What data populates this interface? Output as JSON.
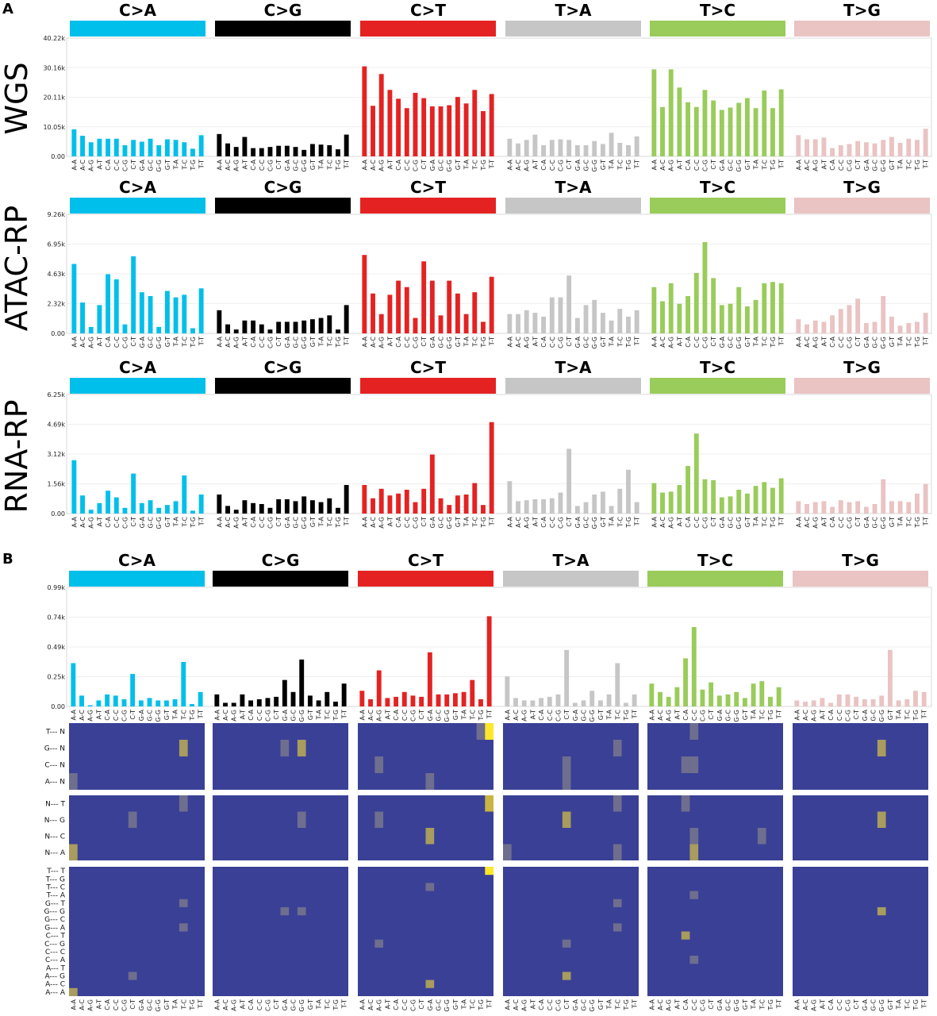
{
  "panels": [
    "A",
    "B"
  ],
  "chart_data": [
    {
      "type": "bar",
      "title": "WGS",
      "classes": [
        "C>A",
        "C>G",
        "C>T",
        "T>A",
        "T>C",
        "T>G"
      ],
      "colors": [
        "#00bfea",
        "#000000",
        "#e52222",
        "#c6c6c6",
        "#99cc5a",
        "#eac3c3"
      ],
      "contexts": [
        "A-A",
        "A-C",
        "A-G",
        "A-T",
        "C-A",
        "C-C",
        "C-G",
        "C-T",
        "G-A",
        "G-C",
        "G-G",
        "G-T",
        "T-A",
        "T-C",
        "T-G",
        "T-T"
      ],
      "ylim": [
        0,
        40.22
      ],
      "yticks": [
        "0.00",
        "10.05k",
        "20.11k",
        "30.16k",
        "40.22k"
      ],
      "values": [
        [
          9.2,
          7.0,
          4.8,
          6.0,
          6.0,
          6.0,
          3.8,
          5.6,
          5.0,
          6.0,
          3.8,
          5.8,
          5.6,
          4.8,
          2.6,
          7.2
        ],
        [
          7.6,
          4.4,
          3.2,
          6.6,
          2.8,
          2.8,
          3.2,
          3.6,
          3.6,
          3.2,
          2.2,
          4.2,
          4.0,
          3.8,
          2.4,
          7.4
        ],
        [
          30.6,
          17.2,
          28.0,
          22.6,
          19.6,
          16.4,
          21.6,
          19.8,
          17.0,
          17.0,
          17.4,
          20.2,
          18.0,
          22.6,
          15.4,
          21.2
        ],
        [
          6.0,
          4.4,
          5.6,
          7.4,
          3.8,
          5.6,
          5.8,
          5.6,
          3.8,
          3.8,
          5.2,
          4.2,
          8.0,
          4.6,
          3.8,
          6.8
        ],
        [
          29.6,
          16.8,
          29.6,
          23.4,
          18.4,
          16.8,
          22.6,
          19.0,
          15.8,
          16.6,
          18.2,
          19.8,
          16.4,
          22.4,
          16.4,
          22.8
        ],
        [
          7.2,
          5.8,
          5.8,
          6.4,
          2.8,
          3.8,
          4.2,
          5.2,
          4.8,
          4.4,
          5.6,
          6.6,
          4.6,
          6.0,
          5.6,
          9.4
        ]
      ]
    },
    {
      "type": "bar",
      "title": "ATAC-RP",
      "classes": [
        "C>A",
        "C>G",
        "C>T",
        "T>A",
        "T>C",
        "T>G"
      ],
      "colors": [
        "#00bfea",
        "#000000",
        "#e52222",
        "#c6c6c6",
        "#99cc5a",
        "#eac3c3"
      ],
      "contexts": [
        "A-A",
        "A-C",
        "A-G",
        "A-T",
        "C-A",
        "C-C",
        "C-G",
        "C-T",
        "G-A",
        "G-C",
        "G-G",
        "G-T",
        "T-A",
        "T-C",
        "T-G",
        "T-T"
      ],
      "ylim": [
        0,
        9.26
      ],
      "yticks": [
        "0.00",
        "2.32k",
        "4.63k",
        "6.95k",
        "9.26k"
      ],
      "values": [
        [
          5.4,
          2.4,
          0.5,
          2.2,
          4.6,
          4.2,
          0.7,
          6.0,
          3.2,
          2.9,
          0.5,
          3.3,
          2.8,
          3.0,
          0.4,
          3.5
        ],
        [
          1.8,
          0.7,
          0.3,
          1.0,
          1.0,
          0.7,
          0.3,
          0.9,
          0.9,
          0.9,
          1.0,
          1.1,
          1.2,
          1.4,
          0.3,
          2.2
        ],
        [
          6.1,
          3.1,
          1.5,
          3.0,
          4.1,
          3.6,
          1.2,
          5.6,
          4.1,
          1.4,
          4.1,
          3.1,
          1.5,
          3.2,
          0.9,
          4.4
        ],
        [
          1.5,
          1.5,
          1.8,
          1.6,
          1.3,
          2.8,
          2.8,
          4.5,
          1.2,
          2.2,
          2.6,
          1.6,
          1.0,
          1.9,
          1.3,
          1.8
        ],
        [
          3.6,
          2.5,
          3.9,
          2.3,
          2.9,
          4.7,
          7.1,
          4.3,
          2.2,
          2.3,
          3.6,
          2.1,
          2.6,
          3.9,
          4.0,
          3.9
        ],
        [
          1.1,
          0.7,
          1.0,
          0.9,
          1.4,
          1.9,
          2.2,
          2.7,
          0.8,
          0.9,
          2.9,
          1.3,
          0.6,
          0.8,
          0.9,
          1.6
        ]
      ]
    },
    {
      "type": "bar",
      "title": "RNA-RP",
      "classes": [
        "C>A",
        "C>G",
        "C>T",
        "T>A",
        "T>C",
        "T>G"
      ],
      "colors": [
        "#00bfea",
        "#000000",
        "#e52222",
        "#c6c6c6",
        "#99cc5a",
        "#eac3c3"
      ],
      "contexts": [
        "A-A",
        "A-C",
        "A-G",
        "A-T",
        "C-A",
        "C-C",
        "C-G",
        "C-T",
        "G-A",
        "G-C",
        "G-G",
        "G-T",
        "T-A",
        "T-C",
        "T-G",
        "T-T"
      ],
      "ylim": [
        0,
        6.25
      ],
      "yticks": [
        "0.00",
        "1.56k",
        "3.12k",
        "4.69k",
        "6.25k"
      ],
      "values": [
        [
          2.8,
          0.95,
          0.2,
          0.55,
          1.2,
          0.85,
          0.3,
          2.1,
          0.55,
          0.7,
          0.3,
          0.45,
          0.65,
          2.0,
          0.15,
          1.0
        ],
        [
          1.0,
          0.4,
          0.2,
          0.7,
          0.55,
          0.5,
          0.3,
          0.75,
          0.75,
          0.65,
          0.9,
          0.7,
          0.6,
          0.8,
          0.3,
          1.5
        ],
        [
          1.5,
          0.8,
          1.3,
          0.95,
          1.05,
          1.25,
          0.6,
          1.3,
          3.1,
          0.8,
          0.45,
          0.95,
          1.0,
          1.6,
          0.45,
          4.8
        ],
        [
          1.7,
          0.65,
          0.7,
          0.75,
          0.75,
          0.8,
          1.1,
          3.4,
          0.4,
          0.6,
          1.0,
          1.15,
          0.4,
          1.3,
          2.3,
          0.6
        ],
        [
          1.6,
          1.1,
          1.15,
          1.5,
          2.5,
          4.2,
          1.8,
          1.75,
          0.85,
          0.9,
          1.25,
          1.05,
          1.45,
          1.65,
          1.35,
          1.85
        ],
        [
          0.65,
          0.5,
          0.6,
          0.65,
          0.35,
          0.7,
          0.6,
          0.65,
          0.35,
          0.5,
          1.8,
          0.65,
          0.65,
          0.6,
          1.05,
          1.55
        ]
      ]
    },
    {
      "type": "bar",
      "title": "",
      "classes": [
        "C>A",
        "C>G",
        "C>T",
        "T>A",
        "T>C",
        "T>G"
      ],
      "colors": [
        "#00bfea",
        "#000000",
        "#e52222",
        "#c6c6c6",
        "#99cc5a",
        "#eac3c3"
      ],
      "contexts": [
        "A-A",
        "A-C",
        "A-G",
        "A-T",
        "C-A",
        "C-C",
        "C-G",
        "C-T",
        "G-A",
        "G-C",
        "G-G",
        "G-T",
        "T-A",
        "T-C",
        "T-G",
        "T-T"
      ],
      "ylim": [
        0,
        0.99
      ],
      "yticks": [
        "0.00",
        "0.25k",
        "0.49k",
        "0.74k",
        "0.99k"
      ],
      "values": [
        [
          0.36,
          0.09,
          0.01,
          0.05,
          0.1,
          0.09,
          0.06,
          0.27,
          0.05,
          0.07,
          0.05,
          0.05,
          0.06,
          0.37,
          0.02,
          0.12
        ],
        [
          0.1,
          0.03,
          0.03,
          0.1,
          0.05,
          0.06,
          0.07,
          0.08,
          0.22,
          0.12,
          0.39,
          0.09,
          0.05,
          0.12,
          0.04,
          0.19
        ],
        [
          0.13,
          0.06,
          0.3,
          0.07,
          0.08,
          0.12,
          0.09,
          0.08,
          0.45,
          0.1,
          0.1,
          0.11,
          0.12,
          0.22,
          0.06,
          0.75
        ],
        [
          0.25,
          0.07,
          0.05,
          0.05,
          0.07,
          0.08,
          0.1,
          0.47,
          0.03,
          0.05,
          0.13,
          0.05,
          0.1,
          0.36,
          0.03,
          0.1
        ],
        [
          0.19,
          0.12,
          0.08,
          0.16,
          0.4,
          0.66,
          0.14,
          0.2,
          0.09,
          0.1,
          0.12,
          0.07,
          0.19,
          0.21,
          0.08,
          0.16
        ],
        [
          0.05,
          0.04,
          0.05,
          0.07,
          0.03,
          0.1,
          0.1,
          0.08,
          0.06,
          0.06,
          0.09,
          0.47,
          0.05,
          0.06,
          0.13,
          0.12
        ]
      ]
    },
    {
      "type": "heatmap",
      "rows": [
        "T--- N",
        "G--- N",
        "C--- N",
        "A--- N"
      ],
      "columns": [
        "A-A",
        "A-C",
        "A-G",
        "A-T",
        "C-A",
        "C-C",
        "C-G",
        "C-T",
        "G-A",
        "G-C",
        "G-G",
        "G-T",
        "T-A",
        "T-C",
        "T-G",
        "T-T"
      ],
      "cells": [
        {
          "c": 0,
          "row": 1,
          "col": 13,
          "v": 0.6
        },
        {
          "c": 0,
          "row": 3,
          "col": 0,
          "v": 0.35
        },
        {
          "c": 1,
          "row": 1,
          "col": 8,
          "v": 0.35
        },
        {
          "c": 1,
          "row": 1,
          "col": 10,
          "v": 0.6
        },
        {
          "c": 2,
          "row": 0,
          "col": 14,
          "v": 0.3
        },
        {
          "c": 2,
          "row": 0,
          "col": 15,
          "v": 1.0
        },
        {
          "c": 2,
          "row": 2,
          "col": 2,
          "v": 0.35
        },
        {
          "c": 2,
          "row": 3,
          "col": 8,
          "v": 0.3
        },
        {
          "c": 3,
          "row": 1,
          "col": 13,
          "v": 0.3
        },
        {
          "c": 3,
          "row": 2,
          "col": 7,
          "v": 0.3
        },
        {
          "c": 3,
          "row": 3,
          "col": 7,
          "v": 0.3
        },
        {
          "c": 4,
          "row": 0,
          "col": 5,
          "v": 0.3
        },
        {
          "c": 4,
          "row": 2,
          "col": 4,
          "v": 0.35
        },
        {
          "c": 4,
          "row": 2,
          "col": 5,
          "v": 0.35
        },
        {
          "c": 5,
          "row": 1,
          "col": 10,
          "v": 0.6
        }
      ]
    },
    {
      "type": "heatmap",
      "rows": [
        "N--- T",
        "N--- G",
        "N--- C",
        "N--- A"
      ],
      "columns": [
        "A-A",
        "A-C",
        "A-G",
        "A-T",
        "C-A",
        "C-C",
        "C-G",
        "C-T",
        "G-A",
        "G-C",
        "G-G",
        "G-T",
        "T-A",
        "T-C",
        "T-G",
        "T-T"
      ],
      "cells": [
        {
          "c": 0,
          "row": 0,
          "col": 13,
          "v": 0.3
        },
        {
          "c": 0,
          "row": 1,
          "col": 7,
          "v": 0.3
        },
        {
          "c": 0,
          "row": 3,
          "col": 0,
          "v": 0.6
        },
        {
          "c": 1,
          "row": 1,
          "col": 10,
          "v": 0.35
        },
        {
          "c": 2,
          "row": 0,
          "col": 15,
          "v": 0.7
        },
        {
          "c": 2,
          "row": 1,
          "col": 2,
          "v": 0.35
        },
        {
          "c": 2,
          "row": 2,
          "col": 8,
          "v": 0.6
        },
        {
          "c": 3,
          "row": 0,
          "col": 13,
          "v": 0.3
        },
        {
          "c": 3,
          "row": 1,
          "col": 7,
          "v": 0.6
        },
        {
          "c": 3,
          "row": 3,
          "col": 0,
          "v": 0.3
        },
        {
          "c": 3,
          "row": 3,
          "col": 13,
          "v": 0.3
        },
        {
          "c": 4,
          "row": 0,
          "col": 4,
          "v": 0.3
        },
        {
          "c": 4,
          "row": 2,
          "col": 5,
          "v": 0.35
        },
        {
          "c": 4,
          "row": 2,
          "col": 13,
          "v": 0.3
        },
        {
          "c": 4,
          "row": 3,
          "col": 5,
          "v": 0.6
        },
        {
          "c": 5,
          "row": 1,
          "col": 10,
          "v": 0.6
        }
      ]
    },
    {
      "type": "heatmap",
      "rows": [
        "T--- T",
        "T--- G",
        "T--- C",
        "T--- A",
        "G--- T",
        "G--- G",
        "G--- C",
        "G--- A",
        "C--- T",
        "C--- G",
        "C--- C",
        "C--- A",
        "A--- T",
        "A--- G",
        "A--- C",
        "A--- A"
      ],
      "columns": [
        "A-A",
        "A-C",
        "A-G",
        "A-T",
        "C-A",
        "C-C",
        "C-G",
        "C-T",
        "G-A",
        "G-C",
        "G-G",
        "G-T",
        "T-A",
        "T-C",
        "T-G",
        "T-T"
      ],
      "cells": [
        {
          "c": 0,
          "row": 4,
          "col": 13,
          "v": 0.3
        },
        {
          "c": 0,
          "row": 7,
          "col": 13,
          "v": 0.3
        },
        {
          "c": 0,
          "row": 13,
          "col": 7,
          "v": 0.3
        },
        {
          "c": 0,
          "row": 15,
          "col": 0,
          "v": 0.6
        },
        {
          "c": 1,
          "row": 5,
          "col": 8,
          "v": 0.3
        },
        {
          "c": 1,
          "row": 5,
          "col": 10,
          "v": 0.3
        },
        {
          "c": 2,
          "row": 0,
          "col": 15,
          "v": 1.0
        },
        {
          "c": 2,
          "row": 2,
          "col": 8,
          "v": 0.3
        },
        {
          "c": 2,
          "row": 9,
          "col": 2,
          "v": 0.3
        },
        {
          "c": 2,
          "row": 14,
          "col": 8,
          "v": 0.6
        },
        {
          "c": 3,
          "row": 4,
          "col": 13,
          "v": 0.3
        },
        {
          "c": 3,
          "row": 7,
          "col": 13,
          "v": 0.3
        },
        {
          "c": 3,
          "row": 9,
          "col": 7,
          "v": 0.3
        },
        {
          "c": 3,
          "row": 13,
          "col": 7,
          "v": 0.6
        },
        {
          "c": 4,
          "row": 3,
          "col": 5,
          "v": 0.3
        },
        {
          "c": 4,
          "row": 8,
          "col": 4,
          "v": 0.6
        },
        {
          "c": 4,
          "row": 11,
          "col": 5,
          "v": 0.3
        },
        {
          "c": 5,
          "row": 5,
          "col": 10,
          "v": 0.6
        }
      ]
    }
  ]
}
